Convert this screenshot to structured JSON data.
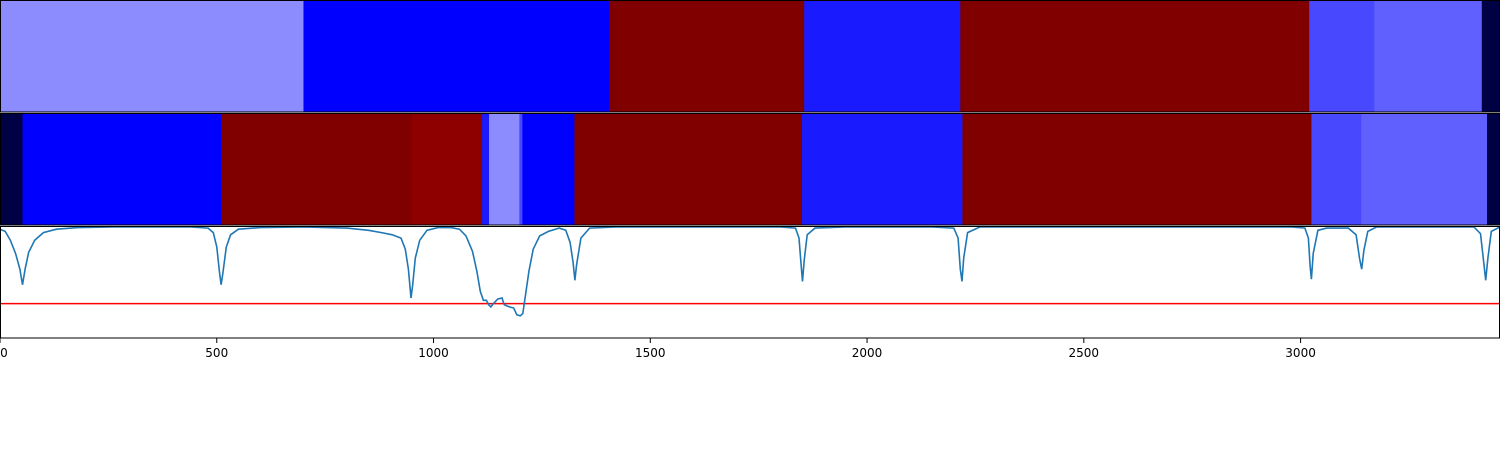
{
  "chart_data": [
    {
      "type": "heatmap",
      "panel": "top-track",
      "xlim": [
        0,
        3460
      ],
      "segments": [
        {
          "start": 0,
          "end": 700,
          "color": "#8c8cff"
        },
        {
          "start": 700,
          "end": 1405,
          "color": "#0000ff"
        },
        {
          "start": 1405,
          "end": 1855,
          "color": "#800000"
        },
        {
          "start": 1855,
          "end": 2215,
          "color": "#1a1aff"
        },
        {
          "start": 2215,
          "end": 3020,
          "color": "#800000"
        },
        {
          "start": 3020,
          "end": 3170,
          "color": "#4848ff"
        },
        {
          "start": 3170,
          "end": 3418,
          "color": "#6060ff"
        },
        {
          "start": 3418,
          "end": 3460,
          "color": "#000045"
        }
      ]
    },
    {
      "type": "heatmap",
      "panel": "middle-track",
      "xlim": [
        0,
        3460
      ],
      "segments": [
        {
          "start": 0,
          "end": 52,
          "color": "#000045"
        },
        {
          "start": 52,
          "end": 510,
          "color": "#0000ff"
        },
        {
          "start": 510,
          "end": 950,
          "color": "#800000"
        },
        {
          "start": 950,
          "end": 1112,
          "color": "#8e0000"
        },
        {
          "start": 1112,
          "end": 1128,
          "color": "#1a1aff"
        },
        {
          "start": 1128,
          "end": 1198,
          "color": "#8c8cff"
        },
        {
          "start": 1198,
          "end": 1205,
          "color": "#4848ff"
        },
        {
          "start": 1205,
          "end": 1325,
          "color": "#0000ff"
        },
        {
          "start": 1325,
          "end": 1850,
          "color": "#800000"
        },
        {
          "start": 1850,
          "end": 2220,
          "color": "#1a1aff"
        },
        {
          "start": 2220,
          "end": 3025,
          "color": "#800000"
        },
        {
          "start": 3025,
          "end": 3140,
          "color": "#4848ff"
        },
        {
          "start": 3140,
          "end": 3430,
          "color": "#6060ff"
        },
        {
          "start": 3430,
          "end": 3460,
          "color": "#000045"
        }
      ]
    },
    {
      "type": "line",
      "panel": "bottom-plot",
      "xlim": [
        0,
        3460
      ],
      "ylim": [
        0,
        1
      ],
      "x_ticks": [
        0,
        500,
        1000,
        1500,
        2000,
        2500,
        3000
      ],
      "x_tick_labels": [
        "0",
        "500",
        "1000",
        "1500",
        "2000",
        "2500",
        "3000"
      ],
      "threshold": {
        "y": 0.31,
        "color": "#ff0000"
      },
      "series": [
        {
          "color": "#1f77b4",
          "points": [
            [
              0,
              0.98
            ],
            [
              12,
              0.96
            ],
            [
              24,
              0.88
            ],
            [
              36,
              0.76
            ],
            [
              46,
              0.62
            ],
            [
              52,
              0.48
            ],
            [
              58,
              0.62
            ],
            [
              66,
              0.77
            ],
            [
              80,
              0.88
            ],
            [
              100,
              0.95
            ],
            [
              130,
              0.98
            ],
            [
              180,
              0.995
            ],
            [
              260,
              1.0
            ],
            [
              350,
              1.0
            ],
            [
              440,
              1.0
            ],
            [
              480,
              0.99
            ],
            [
              492,
              0.95
            ],
            [
              500,
              0.82
            ],
            [
              506,
              0.6
            ],
            [
              510,
              0.48
            ],
            [
              514,
              0.58
            ],
            [
              522,
              0.82
            ],
            [
              532,
              0.93
            ],
            [
              550,
              0.98
            ],
            [
              600,
              0.995
            ],
            [
              700,
              1.0
            ],
            [
              800,
              0.99
            ],
            [
              850,
              0.97
            ],
            [
              880,
              0.95
            ],
            [
              905,
              0.93
            ],
            [
              925,
              0.9
            ],
            [
              935,
              0.8
            ],
            [
              942,
              0.62
            ],
            [
              948,
              0.36
            ],
            [
              952,
              0.48
            ],
            [
              958,
              0.72
            ],
            [
              968,
              0.88
            ],
            [
              985,
              0.97
            ],
            [
              1010,
              0.995
            ],
            [
              1040,
              0.995
            ],
            [
              1060,
              0.98
            ],
            [
              1075,
              0.92
            ],
            [
              1090,
              0.78
            ],
            [
              1100,
              0.6
            ],
            [
              1108,
              0.42
            ],
            [
              1115,
              0.34
            ],
            [
              1122,
              0.34
            ],
            [
              1127,
              0.3
            ],
            [
              1132,
              0.28
            ],
            [
              1138,
              0.31
            ],
            [
              1148,
              0.35
            ],
            [
              1158,
              0.36
            ],
            [
              1163,
              0.3
            ],
            [
              1175,
              0.28
            ],
            [
              1185,
              0.27
            ],
            [
              1192,
              0.21
            ],
            [
              1200,
              0.2
            ],
            [
              1206,
              0.22
            ],
            [
              1212,
              0.38
            ],
            [
              1220,
              0.6
            ],
            [
              1230,
              0.8
            ],
            [
              1245,
              0.92
            ],
            [
              1265,
              0.96
            ],
            [
              1290,
              0.99
            ],
            [
              1305,
              0.97
            ],
            [
              1315,
              0.86
            ],
            [
              1322,
              0.68
            ],
            [
              1326,
              0.52
            ],
            [
              1330,
              0.66
            ],
            [
              1340,
              0.9
            ],
            [
              1360,
              0.99
            ],
            [
              1420,
              1.0
            ],
            [
              1600,
              1.0
            ],
            [
              1800,
              1.0
            ],
            [
              1835,
              0.99
            ],
            [
              1843,
              0.9
            ],
            [
              1848,
              0.65
            ],
            [
              1851,
              0.51
            ],
            [
              1855,
              0.7
            ],
            [
              1862,
              0.93
            ],
            [
              1880,
              0.99
            ],
            [
              1950,
              1.0
            ],
            [
              2150,
              1.0
            ],
            [
              2200,
              0.99
            ],
            [
              2210,
              0.9
            ],
            [
              2215,
              0.62
            ],
            [
              2219,
              0.51
            ],
            [
              2223,
              0.72
            ],
            [
              2232,
              0.95
            ],
            [
              2260,
              1.0
            ],
            [
              2600,
              1.0
            ],
            [
              2980,
              1.0
            ],
            [
              3010,
              0.99
            ],
            [
              3018,
              0.9
            ],
            [
              3022,
              0.65
            ],
            [
              3025,
              0.53
            ],
            [
              3029,
              0.76
            ],
            [
              3040,
              0.97
            ],
            [
              3060,
              0.99
            ],
            [
              3110,
              0.99
            ],
            [
              3128,
              0.93
            ],
            [
              3136,
              0.72
            ],
            [
              3141,
              0.62
            ],
            [
              3146,
              0.79
            ],
            [
              3155,
              0.96
            ],
            [
              3175,
              1.0
            ],
            [
              3400,
              1.0
            ],
            [
              3415,
              0.94
            ],
            [
              3422,
              0.7
            ],
            [
              3427,
              0.52
            ],
            [
              3432,
              0.72
            ],
            [
              3440,
              0.96
            ],
            [
              3460,
              1.0
            ]
          ]
        }
      ]
    }
  ]
}
